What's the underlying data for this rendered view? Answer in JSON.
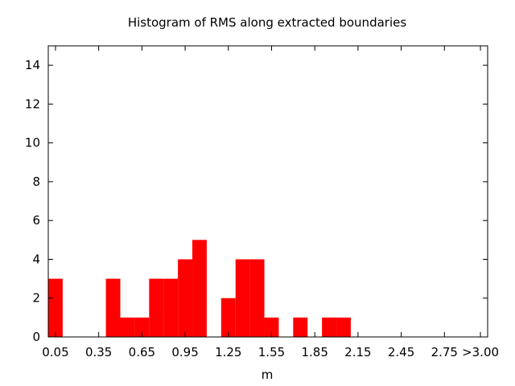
{
  "chart_data": {
    "type": "bar",
    "title": "Histogram of RMS along extracted boundaries",
    "xlabel": "m",
    "ylabel": "",
    "ylim": [
      0,
      15
    ],
    "xlim": [
      0,
      3.05
    ],
    "y_ticks": [
      0,
      2,
      4,
      6,
      8,
      10,
      12,
      14
    ],
    "x_ticks": [
      {
        "value": 0.05,
        "label": "0.05"
      },
      {
        "value": 0.35,
        "label": "0.35"
      },
      {
        "value": 0.65,
        "label": "0.65"
      },
      {
        "value": 0.95,
        "label": "0.95"
      },
      {
        "value": 1.25,
        "label": "1.25"
      },
      {
        "value": 1.55,
        "label": "1.55"
      },
      {
        "value": 1.85,
        "label": "1.85"
      },
      {
        "value": 2.15,
        "label": "2.15"
      },
      {
        "value": 2.45,
        "label": "2.45"
      },
      {
        "value": 2.75,
        "label": "2.75"
      },
      {
        "value": 3.0,
        "label": ">3.00"
      }
    ],
    "bin_width": 0.1,
    "bins": [
      {
        "center": 0.05,
        "count": 3
      },
      {
        "center": 0.15,
        "count": 0
      },
      {
        "center": 0.25,
        "count": 0
      },
      {
        "center": 0.35,
        "count": 0
      },
      {
        "center": 0.45,
        "count": 3
      },
      {
        "center": 0.55,
        "count": 1
      },
      {
        "center": 0.65,
        "count": 1
      },
      {
        "center": 0.75,
        "count": 3
      },
      {
        "center": 0.85,
        "count": 3
      },
      {
        "center": 0.95,
        "count": 4
      },
      {
        "center": 1.05,
        "count": 5
      },
      {
        "center": 1.15,
        "count": 0
      },
      {
        "center": 1.25,
        "count": 2
      },
      {
        "center": 1.35,
        "count": 4
      },
      {
        "center": 1.45,
        "count": 4
      },
      {
        "center": 1.55,
        "count": 1
      },
      {
        "center": 1.65,
        "count": 0
      },
      {
        "center": 1.75,
        "count": 1
      },
      {
        "center": 1.85,
        "count": 0
      },
      {
        "center": 1.95,
        "count": 1
      },
      {
        "center": 2.05,
        "count": 1
      },
      {
        "center": 2.15,
        "count": 0
      },
      {
        "center": 2.25,
        "count": 0
      },
      {
        "center": 2.35,
        "count": 0
      },
      {
        "center": 2.45,
        "count": 0
      },
      {
        "center": 2.55,
        "count": 0
      },
      {
        "center": 2.65,
        "count": 0
      },
      {
        "center": 2.75,
        "count": 0
      },
      {
        "center": 2.85,
        "count": 0
      },
      {
        "center": 2.95,
        "count": 0
      }
    ],
    "bar_color": "#ff0000",
    "grid": false
  }
}
